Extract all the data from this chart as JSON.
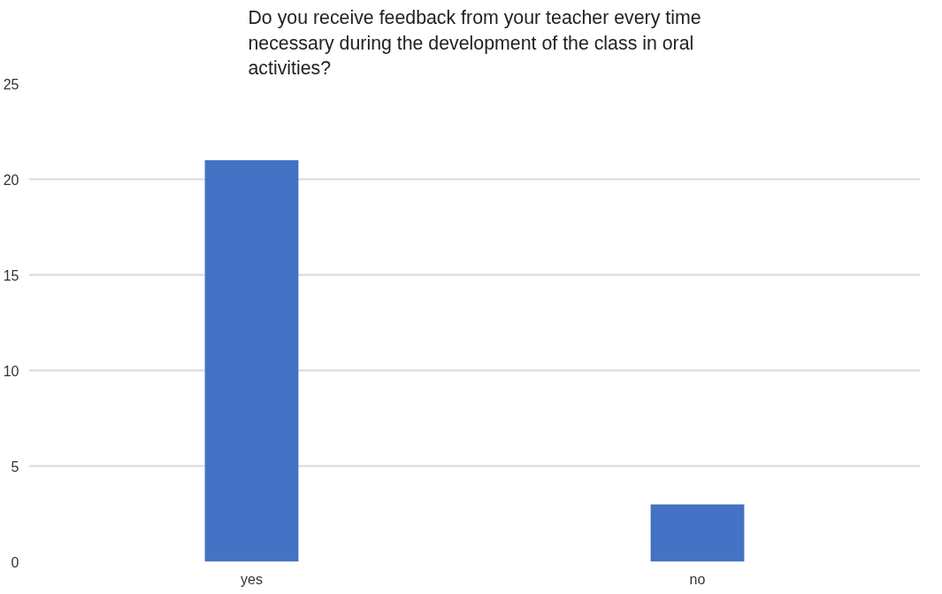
{
  "chart_data": {
    "type": "bar",
    "title": "Do you receive feedback from your teacher every time necessary during the development of the class in oral activities?",
    "categories": [
      "yes",
      "no"
    ],
    "values": [
      21,
      3
    ],
    "color": "#4472c4",
    "ylim": [
      0,
      25
    ],
    "yticks": [
      0,
      5,
      10,
      15,
      20,
      25
    ],
    "grid": "y"
  }
}
